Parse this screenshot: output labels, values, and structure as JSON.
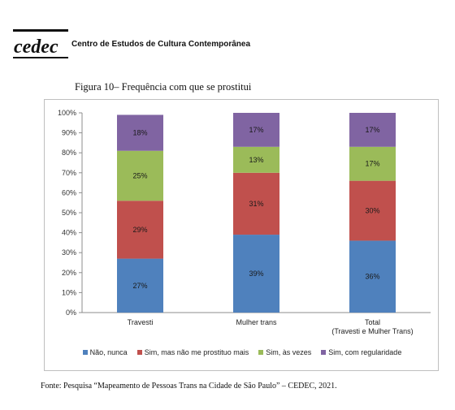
{
  "header": {
    "org_name": "Centro de Estudos de Cultura Contemporânea",
    "logo_text": "cedec"
  },
  "figure_title": "Figura 10– Frequência com que se prostitui",
  "source_note": "Fonte: Pesquisa “Mapeamento de Pessoas Trans na Cidade de São Paulo” – CEDEC, 2021.",
  "chart_data": {
    "type": "bar",
    "stacked": true,
    "title": "",
    "xlabel": "",
    "ylabel": "",
    "ylim": [
      0,
      100
    ],
    "y_ticks": [
      "0%",
      "10%",
      "20%",
      "30%",
      "40%",
      "50%",
      "60%",
      "70%",
      "80%",
      "90%",
      "100%"
    ],
    "categories": [
      "Travesti",
      "Mulher trans",
      "Total\n(Travesti e Mulher Trans)"
    ],
    "series": [
      {
        "name": "Não, nunca",
        "color": "#4f81bd",
        "values": [
          27,
          39,
          36
        ],
        "labels": [
          "27%",
          "39%",
          "36%"
        ]
      },
      {
        "name": "Sim, mas não me prostituo mais",
        "color": "#c0504d",
        "values": [
          29,
          31,
          30
        ],
        "labels": [
          "29%",
          "31%",
          "30%"
        ]
      },
      {
        "name": "Sim, às vezes",
        "color": "#9bbb59",
        "values": [
          25,
          13,
          17
        ],
        "labels": [
          "25%",
          "13%",
          "17%"
        ]
      },
      {
        "name": "Sim, com regularidade",
        "color": "#8064a2",
        "values": [
          18,
          17,
          17
        ],
        "labels": [
          "18%",
          "17%",
          "17%"
        ]
      }
    ],
    "grid": false,
    "legend_position": "bottom"
  }
}
